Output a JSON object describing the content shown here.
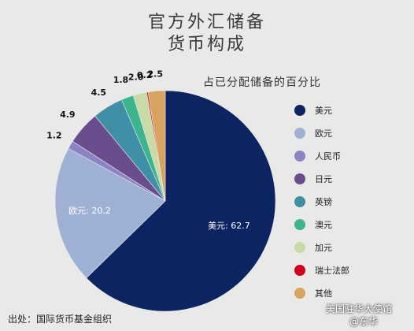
{
  "title_line1": "官方外汇储备",
  "title_line2": "货币构成",
  "source": "出处：国际货币基金组织",
  "watermark": {
    "line1": "美国驻华大使馆",
    "line2": "@东华"
  },
  "chart_data": {
    "type": "pie",
    "title": "官方外汇储备 货币构成",
    "subtitle": "占已分配储备的百分比",
    "slices": [
      {
        "name": "美元",
        "value": 62.7,
        "color": "#0c2461",
        "label": "美元: 62.7"
      },
      {
        "name": "欧元",
        "value": 20.2,
        "color": "#9eb1d4",
        "label": "欧元: 20.2"
      },
      {
        "name": "人民币",
        "value": 1.2,
        "color": "#8b84c4",
        "label": "1.2"
      },
      {
        "name": "日元",
        "value": 4.9,
        "color": "#6a4d8c",
        "label": "4.9"
      },
      {
        "name": "英镑",
        "value": 4.5,
        "color": "#3f8fa6",
        "label": "4.5"
      },
      {
        "name": "澳元",
        "value": 1.8,
        "color": "#3cb58f",
        "label": "1.8"
      },
      {
        "name": "加元",
        "value": 2.0,
        "color": "#c8dba6",
        "label": "2.0"
      },
      {
        "name": "瑞士法郎",
        "value": 0.2,
        "color": "#d0021b",
        "label": "0.2"
      },
      {
        "name": "其他",
        "value": 2.5,
        "color": "#d8a35f",
        "label": "2.5"
      }
    ],
    "legend_position": "right"
  }
}
